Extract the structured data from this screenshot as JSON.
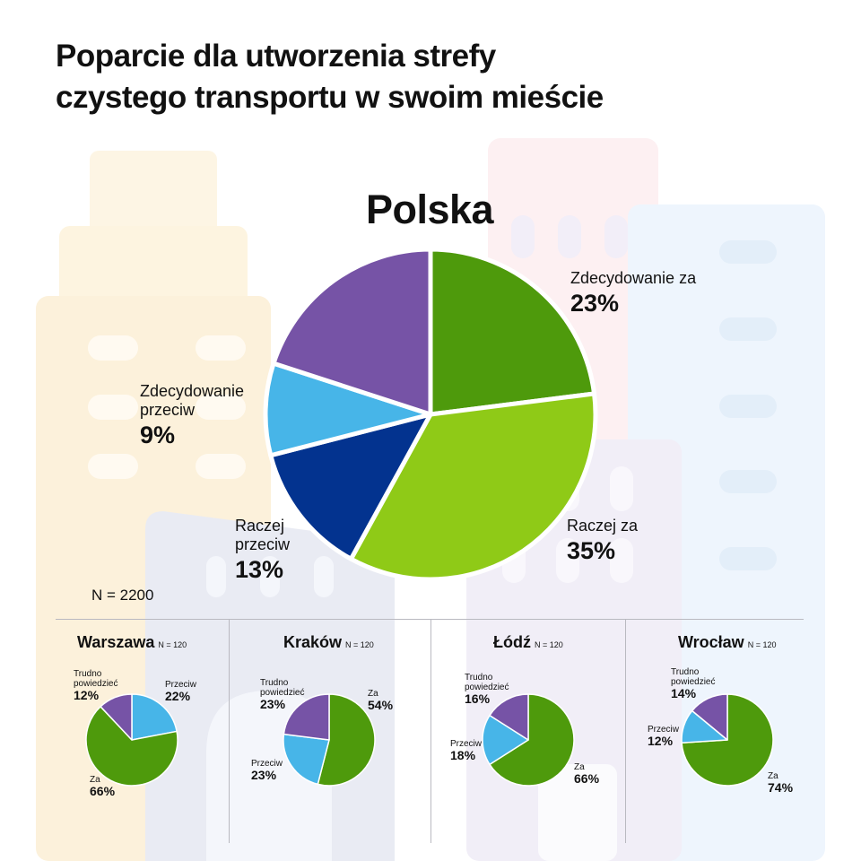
{
  "title": "Poparcie dla utworzenia strefy\nczystego transportu w swoim mieście",
  "colors": {
    "dark_green": "#4e9a0c",
    "light_green": "#8fca17",
    "dark_blue": "#03338f",
    "light_blue": "#47b5e8",
    "purple": "#7653a6"
  },
  "n_total": "N = 2200",
  "chart_data": [
    {
      "type": "pie",
      "title": "Polska",
      "slices": [
        {
          "label": "Zdecydowanie za",
          "value": 23,
          "display": "23%",
          "color": "#4e9a0c"
        },
        {
          "label": "Raczej za",
          "value": 35,
          "display": "35%",
          "color": "#8fca17"
        },
        {
          "label": "Raczej\nprzeciw",
          "value": 13,
          "display": "13%",
          "color": "#03338f"
        },
        {
          "label": "Zdecydowanie\nprzeciw",
          "value": 9,
          "display": "9%",
          "color": "#47b5e8"
        },
        {
          "label": "",
          "value": 20,
          "display": "",
          "color": "#7653a6"
        }
      ]
    },
    {
      "type": "pie",
      "title": "Warszawa",
      "n": "N = 120",
      "slices": [
        {
          "label": "Przeciw",
          "value": 22,
          "display": "22%",
          "color": "#47b5e8"
        },
        {
          "label": "Za",
          "value": 66,
          "display": "66%",
          "color": "#4e9a0c"
        },
        {
          "label": "Trudno\npowiedzieć",
          "value": 12,
          "display": "12%",
          "color": "#7653a6"
        }
      ]
    },
    {
      "type": "pie",
      "title": "Kraków",
      "n": "N = 120",
      "slices": [
        {
          "label": "Za",
          "value": 54,
          "display": "54%",
          "color": "#4e9a0c"
        },
        {
          "label": "Przeciw",
          "value": 23,
          "display": "23%",
          "color": "#47b5e8"
        },
        {
          "label": "Trudno\npowiedzieć",
          "value": 23,
          "display": "23%",
          "color": "#7653a6"
        }
      ]
    },
    {
      "type": "pie",
      "title": "Łódź",
      "n": "N = 120",
      "slices": [
        {
          "label": "Za",
          "value": 66,
          "display": "66%",
          "color": "#4e9a0c"
        },
        {
          "label": "Przeciw",
          "value": 18,
          "display": "18%",
          "color": "#47b5e8"
        },
        {
          "label": "Trudno\npowiedzieć",
          "value": 16,
          "display": "16%",
          "color": "#7653a6"
        }
      ]
    },
    {
      "type": "pie",
      "title": "Wrocław",
      "n": "N = 120",
      "slices": [
        {
          "label": "Za",
          "value": 74,
          "display": "74%",
          "color": "#4e9a0c"
        },
        {
          "label": "Przeciw",
          "value": 12,
          "display": "12%",
          "color": "#47b5e8"
        },
        {
          "label": "Trudno\npowiedzieć",
          "value": 14,
          "display": "14%",
          "color": "#7653a6"
        }
      ]
    }
  ]
}
